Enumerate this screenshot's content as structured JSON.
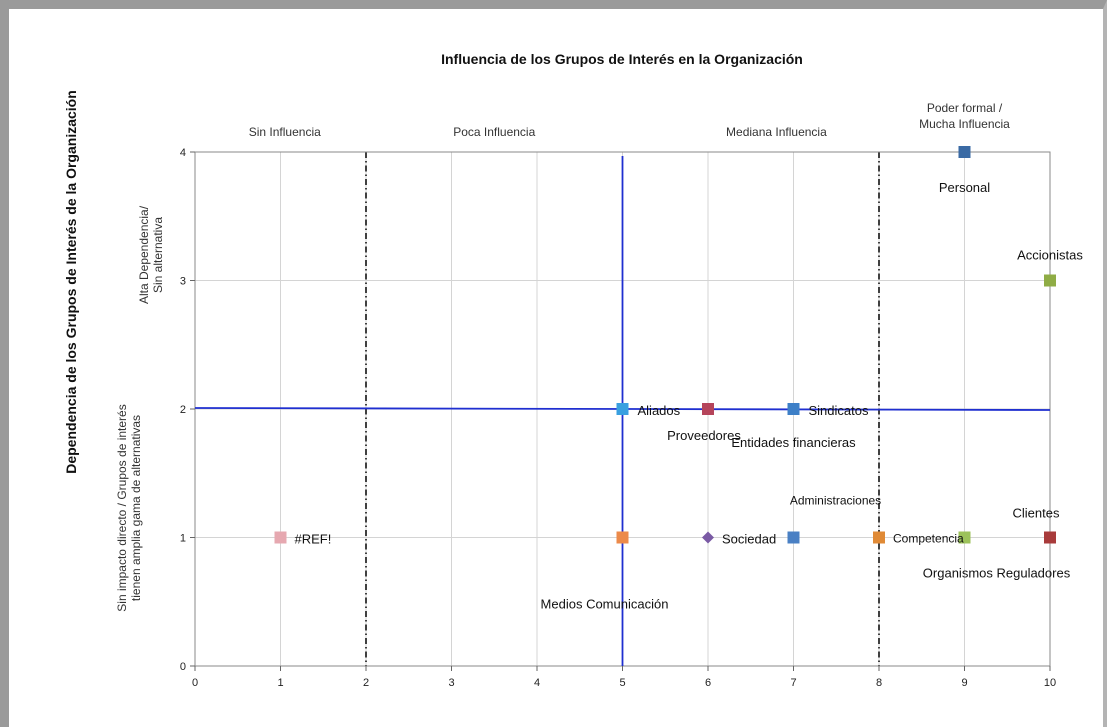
{
  "chart_data": {
    "type": "scatter",
    "title": "Influencia de los Grupos de Interés en la Organización",
    "xlabel": "",
    "ylabel": "Dependencia de los Grupos de Interés de la Organización",
    "xlim": [
      0,
      10
    ],
    "ylim": [
      0,
      4
    ],
    "x_ticks": [
      0,
      1,
      2,
      3,
      4,
      5,
      6,
      7,
      8,
      9,
      10
    ],
    "y_ticks": [
      0,
      1,
      2,
      3,
      4
    ],
    "grid": true,
    "zones": [
      "Sin Influencia",
      "Poca Influencia",
      "Mediana Influencia",
      [
        "Poder formal /",
        "Mucha Influencia"
      ]
    ],
    "y_zone_labels": {
      "high": [
        "Alta Dependencia/",
        "Sin alternativa"
      ],
      "low": [
        "Sin impacto directo / Grupos de interés",
        "tienen amplia gama de alternativas"
      ]
    },
    "dashed_vertical_lines_x": [
      2,
      8
    ],
    "axis_lines": {
      "vertical_x": 5,
      "horizontal_y": 2,
      "color": "#1f2fd0"
    },
    "points": [
      {
        "x": 9,
        "y": 4,
        "label": "Personal",
        "color": "#3a6aa4",
        "marker": "square"
      },
      {
        "x": 10,
        "y": 3,
        "label": "Accionistas",
        "color": "#8fac45",
        "marker": "square"
      },
      {
        "x": 5,
        "y": 2,
        "label": "Aliados",
        "color": "#39a0e0",
        "marker": "square"
      },
      {
        "x": 6,
        "y": 2,
        "label": "Proveedores",
        "color": "#b5445a",
        "marker": "square"
      },
      {
        "x": 7,
        "y": 2,
        "label": "Sindicatos",
        "color": "#3d7fc7",
        "marker": "square"
      },
      {
        "x": 7,
        "y": 2,
        "label": "Entidades financieras",
        "color": "#3d7fc7",
        "marker": "none"
      },
      {
        "x": 1,
        "y": 1,
        "label": "#REF!",
        "color": "#e6a8b0",
        "marker": "square"
      },
      {
        "x": 5,
        "y": 1,
        "label": "Medios Comunicación",
        "color": "#ec8a4a",
        "marker": "square"
      },
      {
        "x": 6,
        "y": 1,
        "label": "Sociedad",
        "color": "#7a5aa4",
        "marker": "diamond"
      },
      {
        "x": 7,
        "y": 1,
        "label": "Administraciones",
        "color": "#4a80c4",
        "marker": "square"
      },
      {
        "x": 8,
        "y": 1,
        "label": "Competencia",
        "color": "#e08a36",
        "marker": "square"
      },
      {
        "x": 9,
        "y": 1,
        "label": "Organismos Reguladores",
        "color": "#9cc25a",
        "marker": "square"
      },
      {
        "x": 10,
        "y": 1,
        "label": "Clientes",
        "color": "#a83b3b",
        "marker": "square"
      }
    ]
  }
}
